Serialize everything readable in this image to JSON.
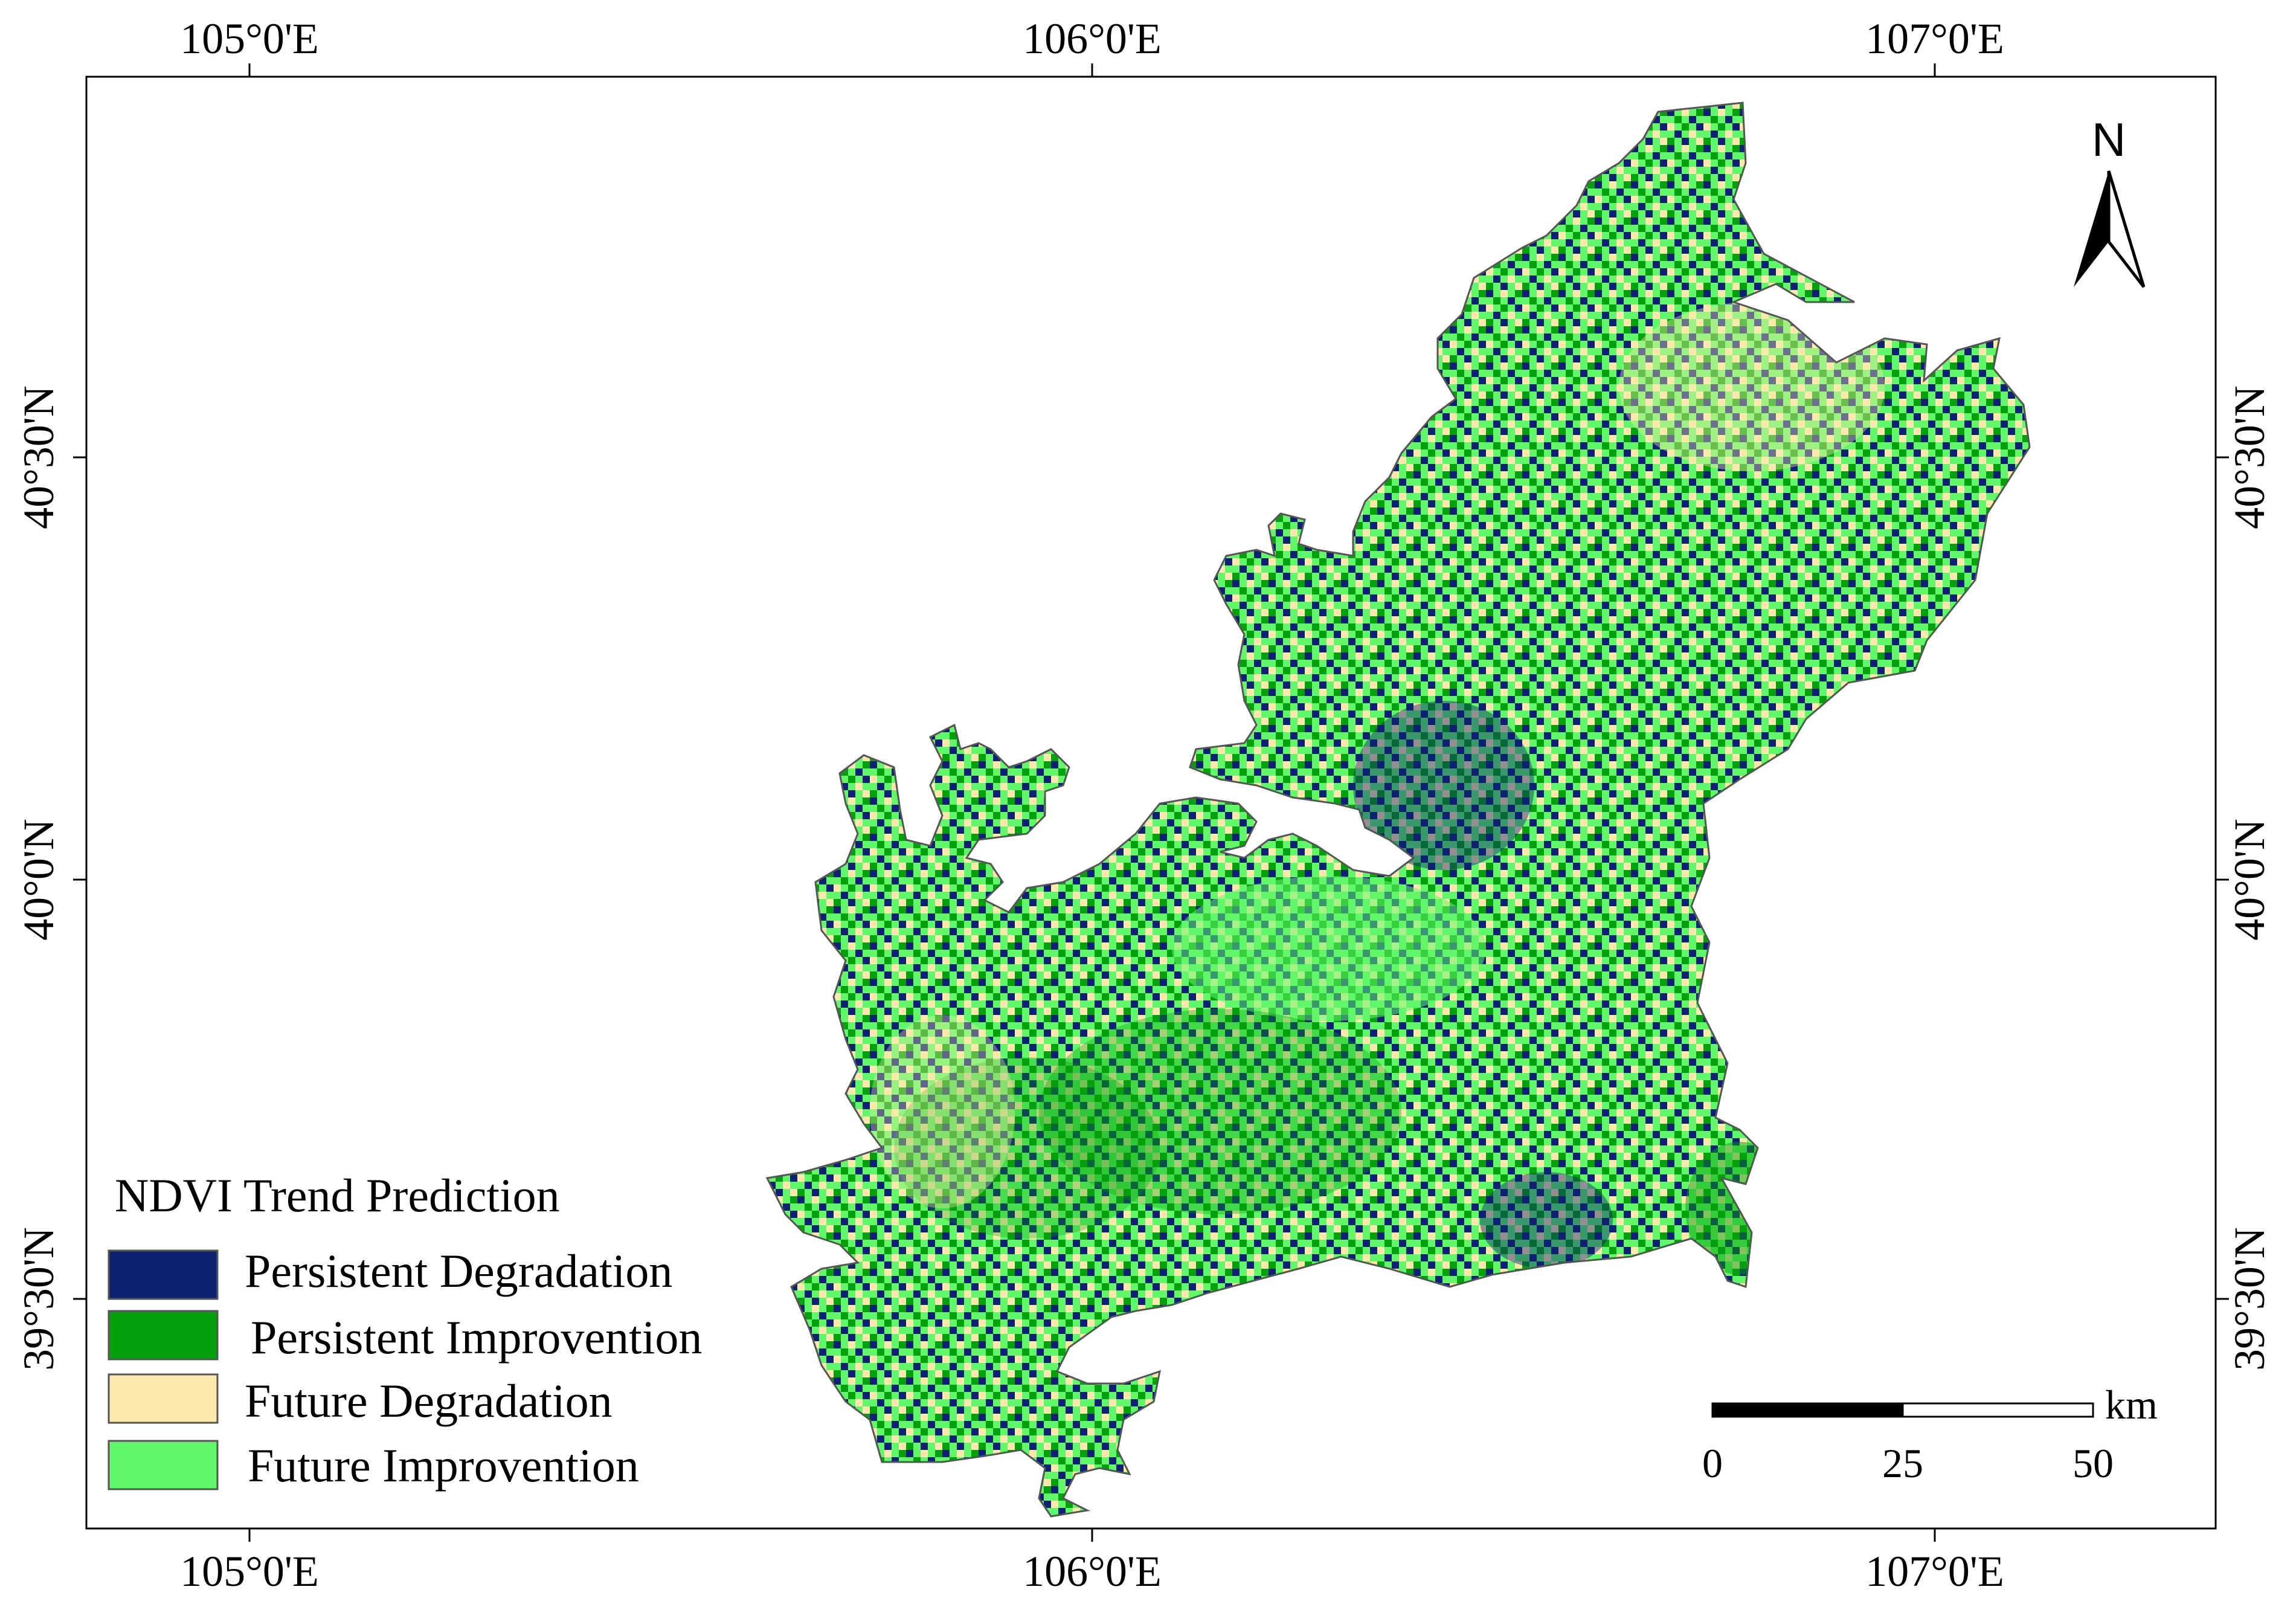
{
  "map": {
    "graticule": {
      "lon_labels": [
        "105°0'E",
        "106°0'E",
        "107°0'E"
      ],
      "lat_labels": [
        "40°30'N",
        "40°0'N",
        "39°30'N"
      ]
    },
    "north_arrow": {
      "label": "N"
    },
    "legend": {
      "title": "NDVI Trend Prediction",
      "items": [
        {
          "label": "Persistent Degradation",
          "color": "#0d2372"
        },
        {
          "label": "Persistent Improvention",
          "color": "#06a00e"
        },
        {
          "label": "Future Degradation",
          "color": "#fde8ad"
        },
        {
          "label": "Future Improvention",
          "color": "#62f76a"
        }
      ]
    },
    "scale_bar": {
      "unit": "km",
      "ticks": [
        "0",
        "25",
        "50"
      ]
    }
  }
}
